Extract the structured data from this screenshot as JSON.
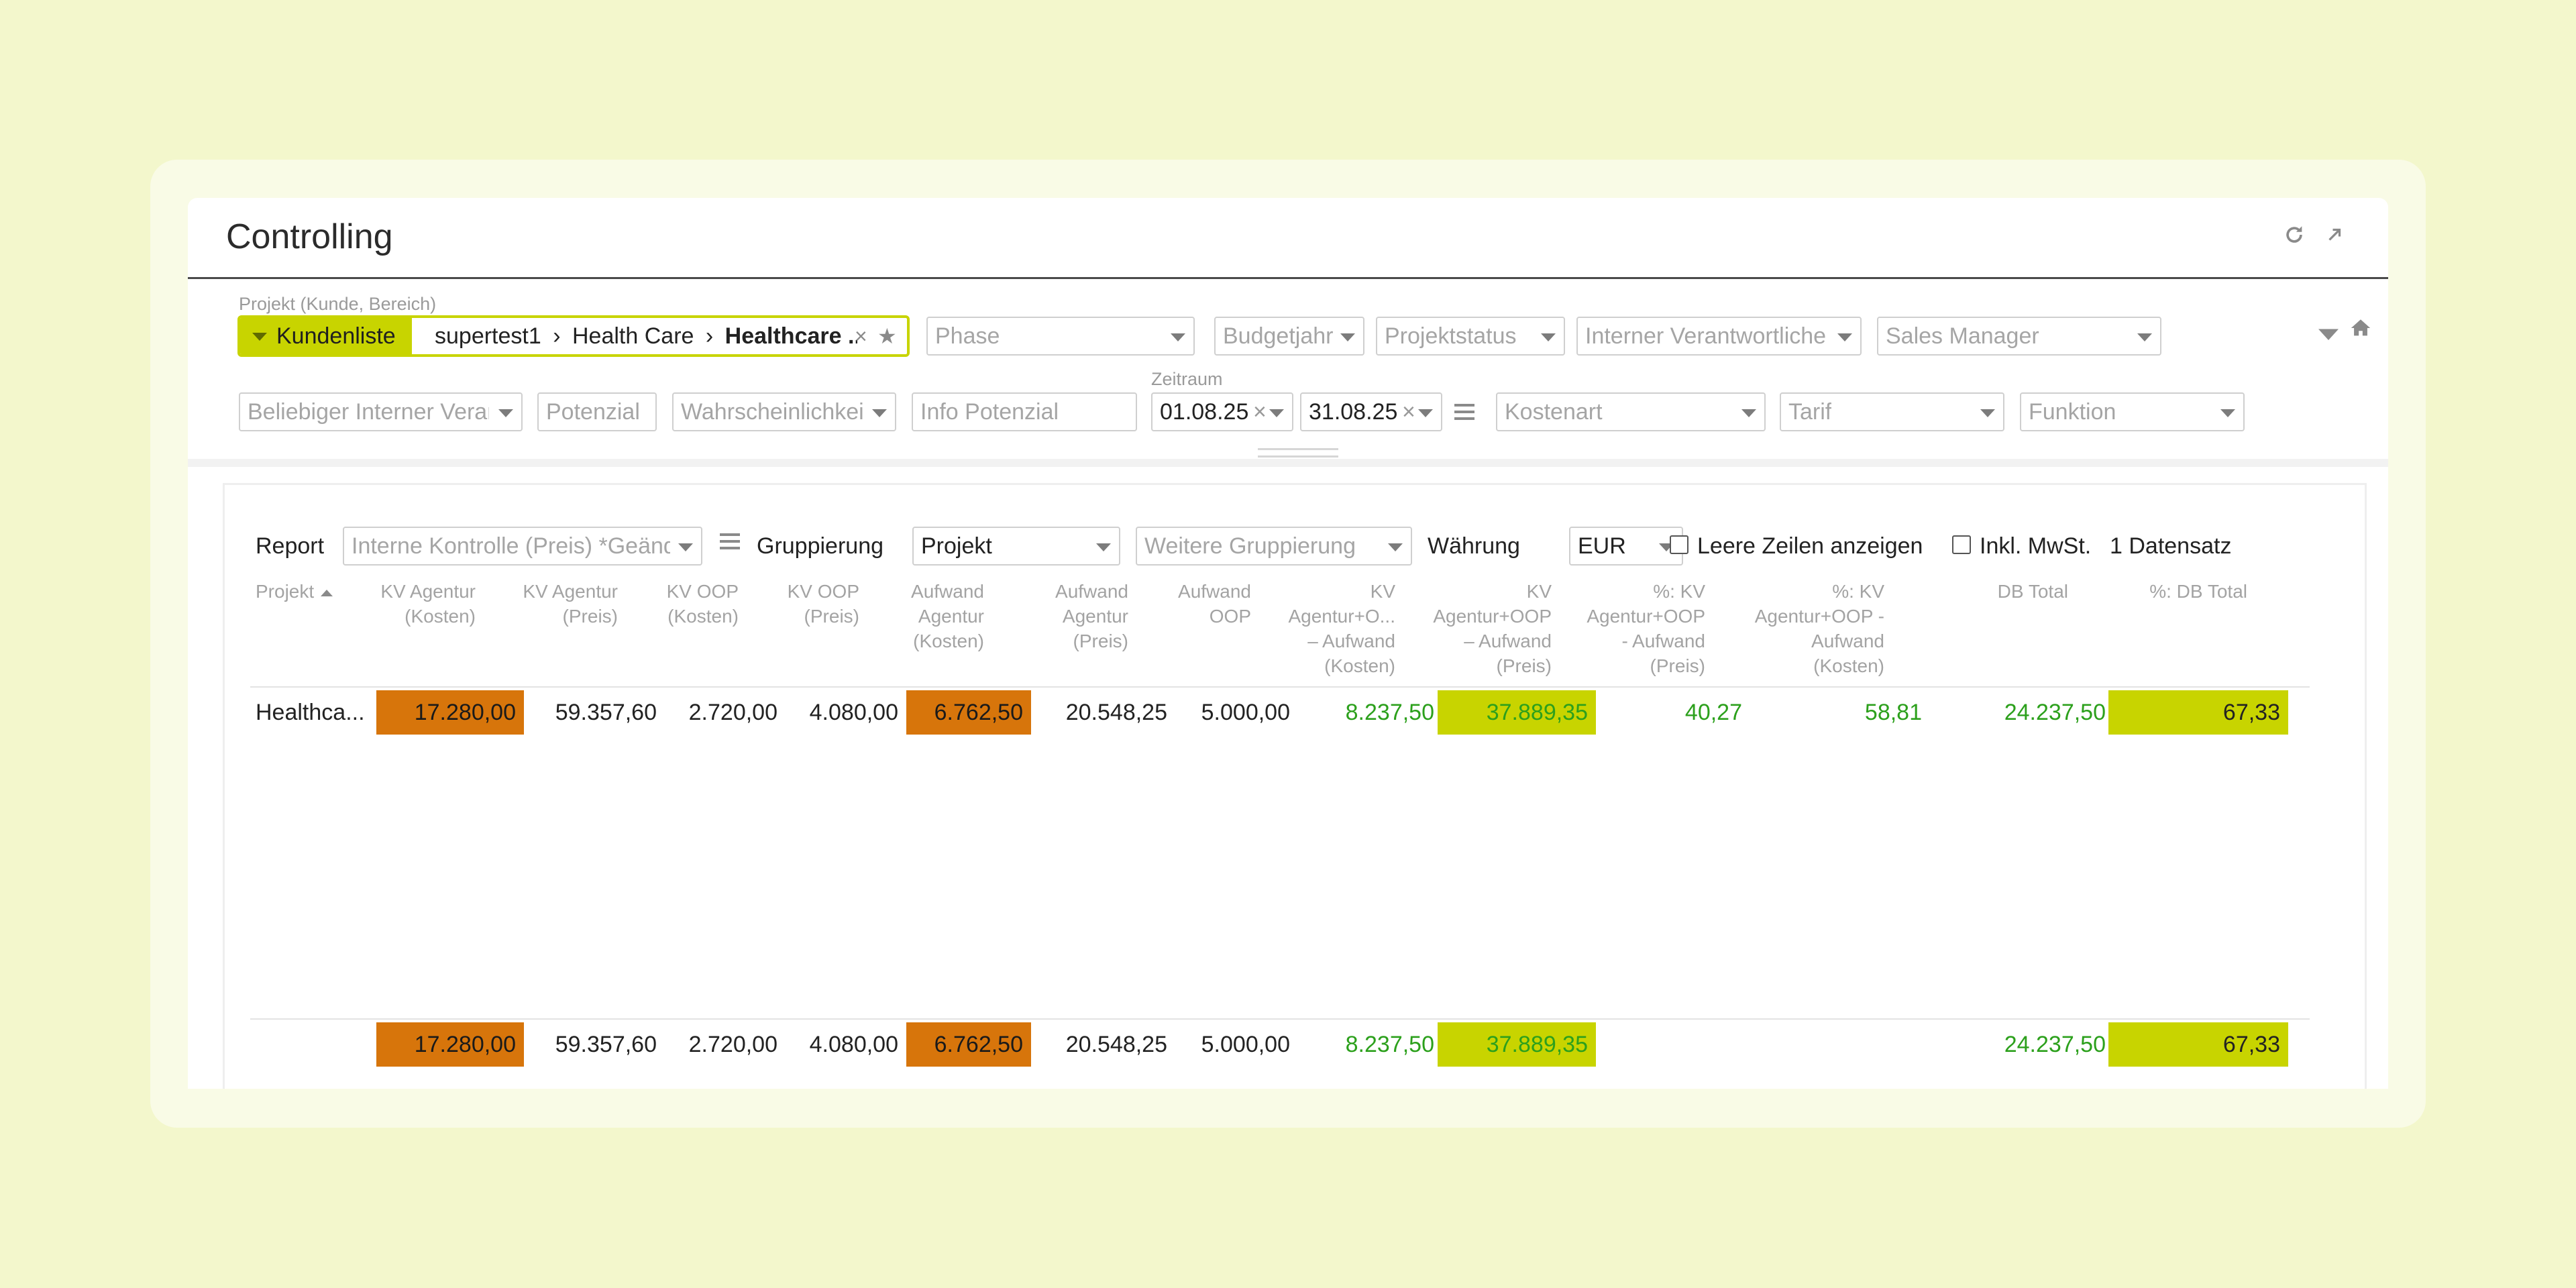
{
  "window": {
    "title": "Controlling"
  },
  "header_icons": [
    "refresh-icon",
    "expand-icon"
  ],
  "filters": {
    "project_label": "Projekt (Kunde, Bereich)",
    "project_tag": "Kundenliste",
    "project_path": {
      "seg1": "supertest1",
      "sep": "›",
      "seg2": "Health Care",
      "seg3": "Healthcare ..."
    },
    "phase": "Phase",
    "budgetjahr": "Budgetjahr",
    "projektstatus": "Projektstatus",
    "interner_verantwortlicher": "Interner Verantwortlicher",
    "sales_manager": "Sales Manager",
    "beliebiger_interner": "Beliebiger Interner Verantwortlicher",
    "potenzial": "Potenzial",
    "wahrscheinlichkeit": "Wahrscheinlichkeit",
    "info_potenzial": "Info Potenzial",
    "zeitraum_label": "Zeitraum",
    "date_from": "01.08.25",
    "date_to": "31.08.25",
    "kostenart": "Kostenart",
    "tarif": "Tarif",
    "funktion": "Funktion"
  },
  "report_bar": {
    "report_label": "Report",
    "report_value": "Interne Kontrolle (Preis) *Geändert",
    "gruppierung_label": "Gruppierung",
    "gruppierung_value": "Projekt",
    "weitere_gruppierung": "Weitere Gruppierung",
    "waehrung_label": "Währung",
    "waehrung_value": "EUR",
    "leere_zeilen": "Leere Zeilen anzeigen",
    "inkl_mwst": "Inkl. MwSt.",
    "datensatz": "1 Datensatz"
  },
  "table": {
    "columns": [
      [
        "Projekt"
      ],
      [
        "KV Agentur",
        "(Kosten)"
      ],
      [
        "KV Agentur",
        "(Preis)"
      ],
      [
        "KV OOP",
        "(Kosten)"
      ],
      [
        "KV OOP",
        "(Preis)"
      ],
      [
        "Aufwand",
        "Agentur",
        "(Kosten)"
      ],
      [
        "Aufwand",
        "Agentur",
        "(Preis)"
      ],
      [
        "Aufwand",
        "OOP"
      ],
      [
        "KV",
        "Agentur+O...",
        "– Aufwand",
        "(Kosten)"
      ],
      [
        "KV",
        "Agentur+OOP",
        "– Aufwand",
        "(Preis)"
      ],
      [
        "%: KV",
        "Agentur+OOP",
        "- Aufwand",
        "(Preis)"
      ],
      [
        "%: KV",
        "Agentur+OOP -",
        "Aufwand",
        "(Kosten)"
      ],
      [
        "DB Total"
      ],
      [
        "%: DB Total"
      ]
    ],
    "row": [
      "Healthca...",
      "17.280,00",
      "59.357,60",
      "2.720,00",
      "4.080,00",
      "6.762,50",
      "20.548,25",
      "5.000,00",
      "8.237,50",
      "37.889,35",
      "40,27",
      "58,81",
      "24.237,50",
      "67,33"
    ],
    "total": [
      "",
      "17.280,00",
      "59.357,60",
      "2.720,00",
      "4.080,00",
      "6.762,50",
      "20.548,25",
      "5.000,00",
      "8.237,50",
      "37.889,35",
      "",
      "",
      "24.237,50",
      "67,33"
    ]
  },
  "colors": {
    "accent_lime": "#c8d400",
    "orange": "#d7750b",
    "positive_green": "#2ca01c",
    "background": "#f3f7cc"
  }
}
